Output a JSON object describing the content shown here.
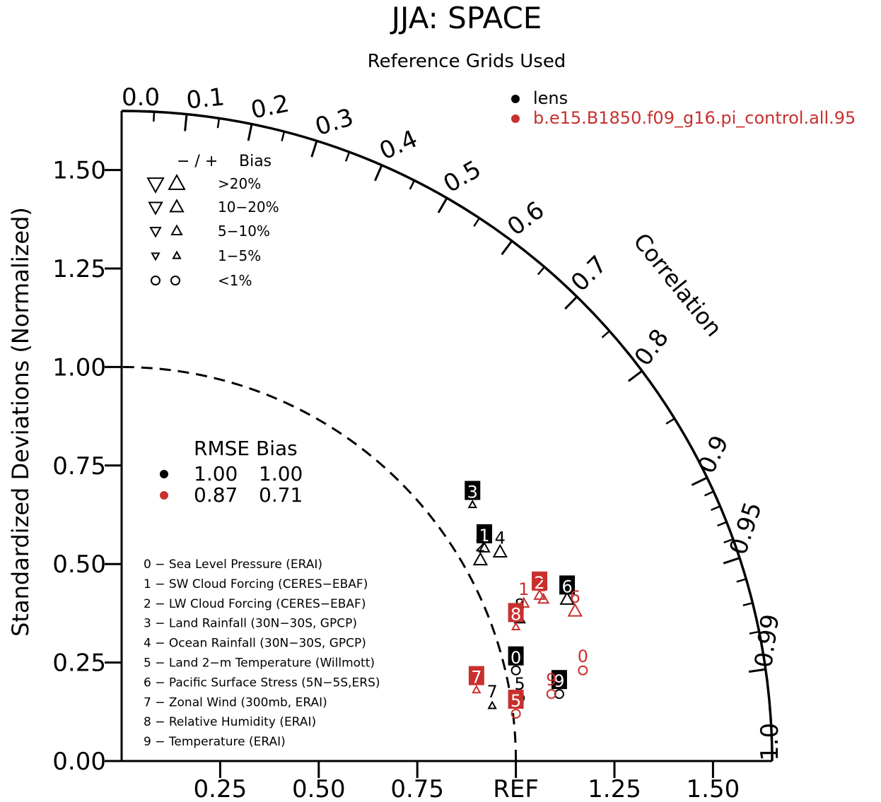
{
  "chart_data": {
    "type": "taylor",
    "title": "JJA: SPACE",
    "subtitle": "Reference Grids Used",
    "ylabel": "Standardized Deviations (Normalized)",
    "corr_label": "Correlation",
    "ref_label": "REF",
    "y_ticks": [
      "0.00",
      "0.25",
      "0.50",
      "0.75",
      "1.00",
      "1.25",
      "1.50"
    ],
    "x_ticks": [
      "0.25",
      "0.50",
      "0.75",
      "REF",
      "1.25",
      "1.50"
    ],
    "corr_ticks": [
      {
        "value": 0.0,
        "label": "0.0"
      },
      {
        "value": 0.1,
        "label": "0.1"
      },
      {
        "value": 0.2,
        "label": "0.2"
      },
      {
        "value": 0.3,
        "label": "0.3"
      },
      {
        "value": 0.4,
        "label": "0.4"
      },
      {
        "value": 0.5,
        "label": "0.5"
      },
      {
        "value": 0.6,
        "label": "0.6"
      },
      {
        "value": 0.7,
        "label": "0.7"
      },
      {
        "value": 0.8,
        "label": "0.8"
      },
      {
        "value": 0.9,
        "label": "0.9"
      },
      {
        "value": 0.95,
        "label": "0.95"
      },
      {
        "value": 0.99,
        "label": "0.99"
      },
      {
        "value": 1.0,
        "label": "1.0"
      }
    ],
    "std_range": [
      0,
      1.65
    ],
    "series_legend": [
      {
        "name": "lens",
        "color": "#000000"
      },
      {
        "name": "b.e15.B1850.f09_g16.pi_control.all.95",
        "color": "#c8302e"
      }
    ],
    "bias_legend": {
      "header_sign": "−  /  +",
      "header_bias": "Bias",
      "rows": [
        {
          "label": ">20%",
          "size": "xl"
        },
        {
          "label": "10−20%",
          "size": "l"
        },
        {
          "label": "5−10%",
          "size": "m"
        },
        {
          "label": "1−5%",
          "size": "s"
        },
        {
          "label": "<1%",
          "size": "circle"
        }
      ]
    },
    "rmse_legend": {
      "header": "RMSE Bias",
      "rows": [
        {
          "rmse": "1.00",
          "bias": "1.00",
          "color": "#000000"
        },
        {
          "rmse": "0.87",
          "bias": "0.71",
          "color": "#c8302e"
        }
      ]
    },
    "variables": [
      "0 − Sea Level Pressure (ERAI)",
      "1 − SW Cloud Forcing (CERES−EBAF)",
      "2 − LW Cloud Forcing (CERES−EBAF)",
      "3 − Land Rainfall (30N−30S, GPCP)",
      "4 − Ocean Rainfall (30N−30S, GPCP)",
      "5 − Land 2−m Temperature (Willmott)",
      "6 − Pacific Surface Stress (5N−5S,ERS)",
      "7 − Zonal Wind (300mb, ERAI)",
      "8 − Relative Humidity (ERAI)",
      "9 − Temperature (ERAI)"
    ],
    "points": [
      {
        "series": 0,
        "id": "0",
        "x": 1.0,
        "y": 0.23,
        "marker": "circle",
        "boxed": true
      },
      {
        "series": 0,
        "id": "1",
        "x": 0.92,
        "y": 0.54,
        "marker": "up-m",
        "boxed": true
      },
      {
        "series": 0,
        "id": "2",
        "x": 0.91,
        "y": 0.51,
        "marker": "up-l",
        "boxed": false
      },
      {
        "series": 0,
        "id": "3",
        "x": 0.89,
        "y": 0.65,
        "marker": "up-s",
        "boxed": true
      },
      {
        "series": 0,
        "id": "4",
        "x": 0.96,
        "y": 0.53,
        "marker": "up-l",
        "boxed": false
      },
      {
        "series": 0,
        "id": "5",
        "x": 1.01,
        "y": 0.16,
        "marker": "circle",
        "boxed": false
      },
      {
        "series": 0,
        "id": "6",
        "x": 1.13,
        "y": 0.41,
        "marker": "up-l",
        "boxed": true
      },
      {
        "series": 0,
        "id": "7",
        "x": 0.94,
        "y": 0.14,
        "marker": "up-s",
        "boxed": false
      },
      {
        "series": 0,
        "id": "8",
        "x": 1.01,
        "y": 0.36,
        "marker": "up-m",
        "boxed": false
      },
      {
        "series": 0,
        "id": "9",
        "x": 1.11,
        "y": 0.17,
        "marker": "circle",
        "boxed": true
      },
      {
        "series": 1,
        "id": "0",
        "x": 1.17,
        "y": 0.23,
        "marker": "circle",
        "boxed": false
      },
      {
        "series": 1,
        "id": "1",
        "x": 1.02,
        "y": 0.4,
        "marker": "up-m",
        "boxed": false
      },
      {
        "series": 1,
        "id": "2",
        "x": 1.06,
        "y": 0.42,
        "marker": "up-m",
        "boxed": true
      },
      {
        "series": 1,
        "id": "3",
        "x": 1.07,
        "y": 0.41,
        "marker": "up-m",
        "boxed": false
      },
      {
        "series": 1,
        "id": "5",
        "x": 1.0,
        "y": 0.12,
        "marker": "circle",
        "boxed": true
      },
      {
        "series": 1,
        "id": "6",
        "x": 1.15,
        "y": 0.38,
        "marker": "up-l",
        "boxed": false
      },
      {
        "series": 1,
        "id": "7",
        "x": 0.9,
        "y": 0.18,
        "marker": "up-s",
        "boxed": true
      },
      {
        "series": 1,
        "id": "8",
        "x": 1.0,
        "y": 0.34,
        "marker": "up-s",
        "boxed": true
      },
      {
        "series": 1,
        "id": "9",
        "x": 1.09,
        "y": 0.17,
        "marker": "circle",
        "boxed": false
      }
    ]
  }
}
